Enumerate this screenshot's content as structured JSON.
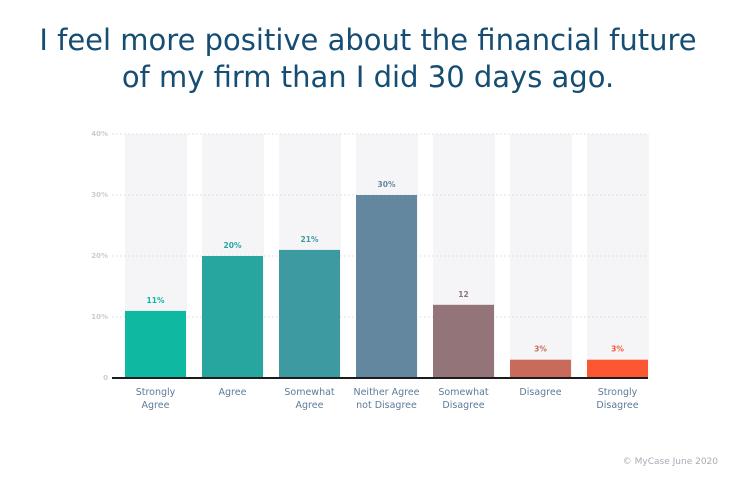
{
  "title_lines": [
    "I feel more positive about the financial future",
    "of my firm than I did 30 days ago."
  ],
  "footer": "© MyCase June 2020",
  "chart_data": {
    "type": "bar",
    "categories": [
      [
        "Strongly",
        "Agree"
      ],
      [
        "Agree"
      ],
      [
        "Somewhat",
        "Agree"
      ],
      [
        "Neither Agree",
        "not Disagree"
      ],
      [
        "Somewhat",
        "Disagree"
      ],
      [
        "Disagree"
      ],
      [
        "Strongly",
        "Disagree"
      ]
    ],
    "values": [
      11,
      20,
      21,
      30,
      12,
      3,
      3
    ],
    "data_labels": [
      "11%",
      "20%",
      "21%",
      "30%",
      "12",
      "3%",
      "3%"
    ],
    "colors": [
      "#0fb8a0",
      "#27a59f",
      "#3d9aa0",
      "#62879e",
      "#937479",
      "#c86b5a",
      "#fb5733"
    ],
    "yticks": [
      0,
      10,
      20,
      30,
      40
    ],
    "ytick_labels": [
      "0",
      "10%",
      "20%",
      "30%",
      "40%"
    ],
    "ylim": [
      0,
      40
    ],
    "grid": true,
    "column_background": "#f5f5f7",
    "axis_color": "#1c1c1c",
    "label_color": "#5c7b99"
  }
}
